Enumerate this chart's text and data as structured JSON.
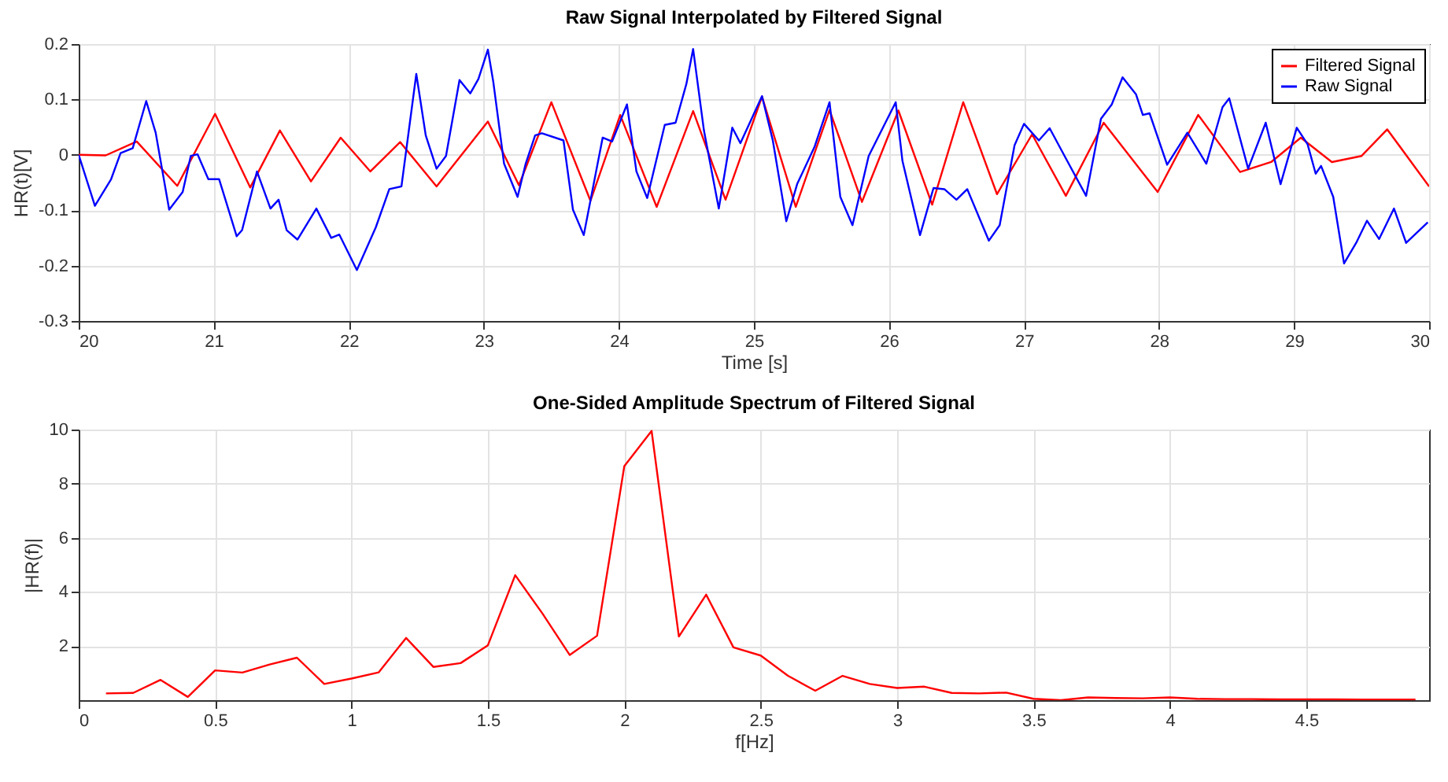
{
  "chart_data": [
    {
      "type": "line",
      "title": "Raw Signal Interpolated by Filtered Signal",
      "xlabel": "Time [s]",
      "ylabel": "HR(t)[V]",
      "xlim": [
        20,
        30
      ],
      "xticks": [
        20,
        21,
        22,
        23,
        24,
        25,
        26,
        27,
        28,
        29,
        30
      ],
      "ylim": [
        -0.3,
        0.2
      ],
      "yticks": [
        -0.3,
        -0.2,
        -0.1,
        0,
        0.1,
        0.2
      ],
      "grid": true,
      "legend": "top right",
      "line_style": "solid",
      "series": [
        {
          "name": "Filtered Signal",
          "color": "#ff0000",
          "x": [
            20,
            20.2,
            20.43,
            20.73,
            21.01,
            21.27,
            21.49,
            21.72,
            21.94,
            22.16,
            22.38,
            22.65,
            23.03,
            23.26,
            23.5,
            23.79,
            24.01,
            24.28,
            24.55,
            24.79,
            25.06,
            25.31,
            25.56,
            25.8,
            26.07,
            26.32,
            26.55,
            26.8,
            27.06,
            27.31,
            27.59,
            27.99,
            28.29,
            28.6,
            28.83,
            29.05,
            29.28,
            29.5,
            29.69,
            30
          ],
          "values": [
            0,
            -0.001,
            0.024,
            -0.056,
            0.074,
            -0.059,
            0.044,
            -0.048,
            0.031,
            -0.03,
            0.023,
            -0.057,
            0.06,
            -0.055,
            0.095,
            -0.083,
            0.072,
            -0.094,
            0.079,
            -0.081,
            0.105,
            -0.094,
            0.081,
            -0.085,
            0.08,
            -0.09,
            0.095,
            -0.071,
            0.037,
            -0.074,
            0.058,
            -0.067,
            0.072,
            -0.031,
            -0.013,
            0.031,
            -0.013,
            -0.002,
            0.046,
            -0.057
          ]
        },
        {
          "name": "Raw Signal",
          "color": "#0000ff",
          "x": [
            20,
            20.12,
            20.24,
            20.31,
            20.4,
            20.5,
            20.57,
            20.67,
            20.77,
            20.83,
            20.88,
            20.96,
            21.04,
            21.17,
            21.21,
            21.32,
            21.42,
            21.48,
            21.54,
            21.62,
            21.76,
            21.87,
            21.93,
            22.06,
            22.2,
            22.3,
            22.39,
            22.5,
            22.57,
            22.65,
            22.72,
            22.82,
            22.9,
            22.96,
            23.03,
            23.07,
            23.15,
            23.25,
            23.31,
            23.38,
            23.43,
            23.59,
            23.66,
            23.74,
            23.88,
            23.95,
            24.06,
            24.13,
            24.21,
            24.34,
            24.42,
            24.5,
            24.55,
            24.63,
            24.74,
            24.84,
            24.9,
            25.06,
            25.14,
            25.24,
            25.32,
            25.45,
            25.56,
            25.64,
            25.73,
            25.85,
            26.05,
            26.1,
            26.23,
            26.33,
            26.41,
            26.5,
            26.58,
            26.74,
            26.82,
            26.93,
            27,
            27.11,
            27.19,
            27.32,
            27.46,
            27.57,
            27.65,
            27.73,
            27.83,
            27.88,
            27.93,
            28.06,
            28.21,
            28.35,
            28.47,
            28.52,
            28.66,
            28.79,
            28.9,
            29.02,
            29.1,
            29.16,
            29.2,
            29.29,
            29.37,
            29.46,
            29.54,
            29.63,
            29.74,
            29.83,
            29.99
          ],
          "values": [
            0,
            -0.092,
            -0.044,
            0.003,
            0.012,
            0.097,
            0.04,
            -0.099,
            -0.067,
            -0.002,
            0.001,
            -0.044,
            -0.044,
            -0.147,
            -0.136,
            -0.03,
            -0.097,
            -0.081,
            -0.136,
            -0.153,
            -0.097,
            -0.15,
            -0.144,
            -0.208,
            -0.131,
            -0.062,
            -0.057,
            0.146,
            0.035,
            -0.025,
            -0.002,
            0.135,
            0.111,
            0.137,
            0.19,
            0.132,
            -0.016,
            -0.076,
            -0.016,
            0.035,
            0.039,
            0.026,
            -0.099,
            -0.145,
            0.031,
            0.024,
            0.091,
            -0.03,
            -0.078,
            0.054,
            0.058,
            0.128,
            0.191,
            0.044,
            -0.097,
            0.049,
            0.021,
            0.106,
            0.026,
            -0.12,
            -0.053,
            0.015,
            0.095,
            -0.076,
            -0.127,
            -0.002,
            0.095,
            -0.011,
            -0.145,
            -0.06,
            -0.062,
            -0.081,
            -0.062,
            -0.155,
            -0.127,
            0.017,
            0.056,
            0.026,
            0.048,
            -0.011,
            -0.074,
            0.065,
            0.091,
            0.14,
            0.109,
            0.072,
            0.075,
            -0.018,
            0.04,
            -0.016,
            0.086,
            0.102,
            -0.025,
            0.058,
            -0.053,
            0.049,
            0.019,
            -0.034,
            -0.02,
            -0.076,
            -0.196,
            -0.159,
            -0.119,
            -0.152,
            -0.097,
            -0.159,
            -0.122
          ]
        }
      ]
    },
    {
      "type": "line",
      "title": "One-Sided Amplitude Spectrum of Filtered Signal",
      "xlabel": "f[Hz]",
      "ylabel": "|HR(f)|",
      "xlim": [
        0,
        4.95
      ],
      "xticks": [
        0,
        0.5,
        1,
        1.5,
        2,
        2.5,
        3,
        3.5,
        4,
        4.5
      ],
      "ylim": [
        0,
        10
      ],
      "yticks": [
        2,
        4,
        6,
        8,
        10
      ],
      "grid": true,
      "legend": false,
      "line_style": "solid",
      "series": [
        {
          "color": "#ff0000",
          "x": [
            0.1,
            0.2,
            0.3,
            0.4,
            0.5,
            0.6,
            0.7,
            0.8,
            0.9,
            1,
            1.1,
            1.2,
            1.3,
            1.4,
            1.5,
            1.6,
            1.7,
            1.8,
            1.9,
            2,
            2.1,
            2.2,
            2.3,
            2.4,
            2.5,
            2.6,
            2.7,
            2.8,
            2.9,
            3,
            3.1,
            3.2,
            3.3,
            3.4,
            3.5,
            3.6,
            3.7,
            3.8,
            3.9,
            4,
            4.1,
            4.2,
            4.3,
            4.4,
            4.5,
            4.6,
            4.7,
            4.8,
            4.9
          ],
          "values": [
            0.25,
            0.27,
            0.75,
            0.12,
            1.1,
            1.02,
            1.32,
            1.57,
            0.6,
            0.8,
            1.03,
            2.3,
            1.23,
            1.37,
            2.03,
            4.62,
            3.2,
            1.67,
            2.38,
            8.65,
            9.95,
            2.35,
            3.9,
            1.95,
            1.65,
            0.9,
            0.35,
            0.9,
            0.6,
            0.45,
            0.5,
            0.27,
            0.25,
            0.28,
            0.05,
            0,
            0.1,
            0.08,
            0.07,
            0.1,
            0.05,
            0.04,
            0.04,
            0.03,
            0.03,
            0.03,
            0.02,
            0.02,
            0.02
          ]
        }
      ]
    }
  ]
}
